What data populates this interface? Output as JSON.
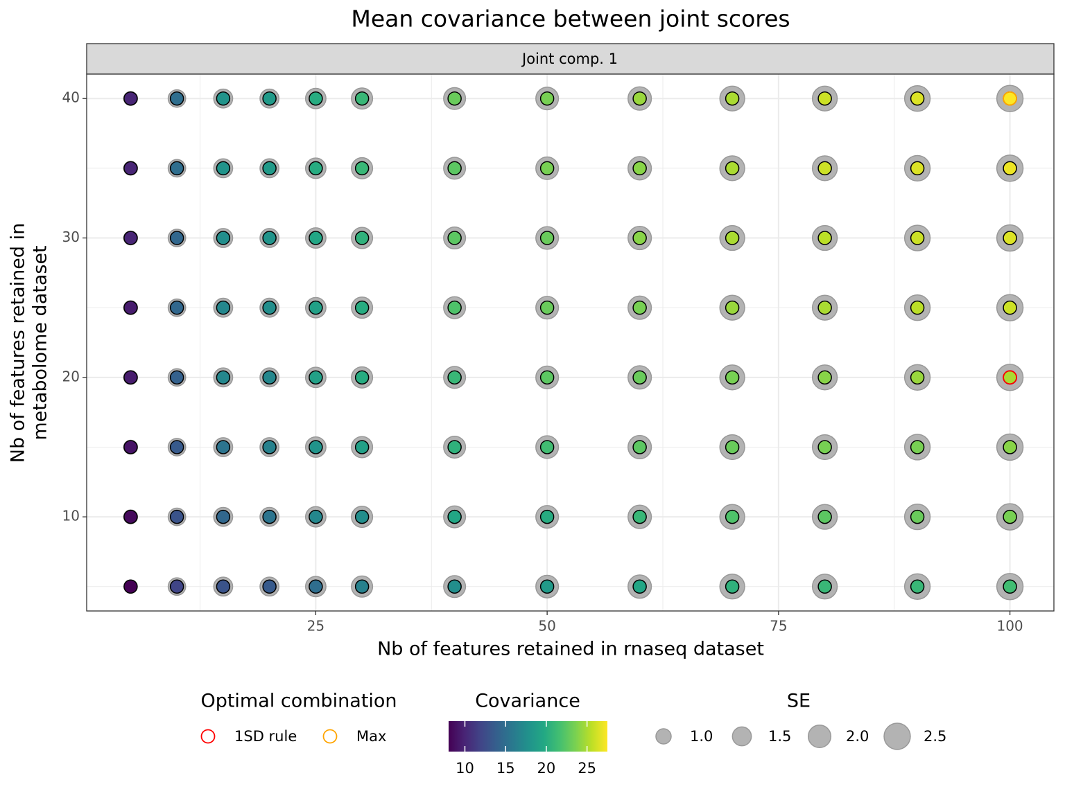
{
  "chart_data": {
    "type": "scatter",
    "title": "Mean covariance between joint scores",
    "strip": "Joint comp. 1",
    "xlabel": "Nb of features retained in rnaseq dataset",
    "ylabel": [
      "Nb of features retained in",
      "metabolome dataset"
    ],
    "xlim": [
      0.25,
      104.75
    ],
    "ylim": [
      3.25,
      41.75
    ],
    "xticks": [
      25,
      50,
      75,
      100
    ],
    "yticks": [
      10,
      20,
      30,
      40
    ],
    "x_minor_grid": [
      12.5,
      37.5,
      62.5,
      87.5
    ],
    "y_minor_grid": [
      5,
      15,
      25,
      35
    ],
    "grid": true,
    "x": [
      5,
      10,
      15,
      20,
      25,
      30,
      40,
      50,
      60,
      70,
      80,
      90,
      100,
      5,
      10,
      15,
      20,
      25,
      30,
      40,
      50,
      60,
      70,
      80,
      90,
      100,
      5,
      10,
      15,
      20,
      25,
      30,
      40,
      50,
      60,
      70,
      80,
      90,
      100,
      5,
      10,
      15,
      20,
      25,
      30,
      40,
      50,
      60,
      70,
      80,
      90,
      100,
      5,
      10,
      15,
      20,
      25,
      30,
      40,
      50,
      60,
      70,
      80,
      90,
      100,
      5,
      10,
      15,
      20,
      25,
      30,
      40,
      50,
      60,
      70,
      80,
      90,
      100,
      5,
      10,
      15,
      20,
      25,
      30,
      40,
      50,
      60,
      70,
      80,
      90,
      100,
      5,
      10,
      15,
      20,
      25,
      30,
      40,
      50,
      60,
      70,
      80,
      90,
      100
    ],
    "y": [
      40,
      40,
      40,
      40,
      40,
      40,
      40,
      40,
      40,
      40,
      40,
      40,
      40,
      35,
      35,
      35,
      35,
      35,
      35,
      35,
      35,
      35,
      35,
      35,
      35,
      35,
      30,
      30,
      30,
      30,
      30,
      30,
      30,
      30,
      30,
      30,
      30,
      30,
      30,
      25,
      25,
      25,
      25,
      25,
      25,
      25,
      25,
      25,
      25,
      25,
      25,
      25,
      20,
      20,
      20,
      20,
      20,
      20,
      20,
      20,
      20,
      20,
      20,
      20,
      20,
      15,
      15,
      15,
      15,
      15,
      15,
      15,
      15,
      15,
      15,
      15,
      15,
      15,
      10,
      10,
      10,
      10,
      10,
      10,
      10,
      10,
      10,
      10,
      10,
      10,
      10,
      5,
      5,
      5,
      5,
      5,
      5,
      5,
      5,
      5,
      5,
      5,
      5,
      5
    ],
    "covariance": [
      10,
      15,
      18,
      18.5,
      20,
      21,
      23,
      23.5,
      24.5,
      25,
      26,
      26.5,
      27.5,
      10,
      15,
      18,
      18.5,
      20,
      21,
      22.5,
      23.5,
      24,
      25,
      26,
      26.5,
      27,
      10,
      14.5,
      17.5,
      18,
      19.5,
      20.5,
      22.5,
      23,
      24,
      25,
      25.5,
      26,
      26.5,
      9.5,
      14.5,
      17,
      17.5,
      19,
      20,
      22,
      23,
      23.5,
      24.5,
      25,
      25.5,
      26,
      9.5,
      14,
      17,
      17,
      19,
      20,
      21,
      22.5,
      23,
      23.5,
      24,
      24.5,
      25,
      9,
      13.5,
      15.5,
      16.5,
      18,
      19,
      20.5,
      21.5,
      22.5,
      23,
      23.5,
      23.5,
      24,
      8.5,
      13,
      14.5,
      15.5,
      17,
      17.5,
      19.5,
      20,
      21,
      22,
      22.5,
      23,
      23.5,
      8,
      12,
      13,
      13.5,
      15,
      16.5,
      17.5,
      18.5,
      19.5,
      20.5,
      21,
      21,
      21.5
    ],
    "se": [
      0.8,
      1.3,
      1.5,
      1.5,
      1.7,
      1.8,
      1.9,
      2.0,
      2.1,
      2.3,
      2.3,
      2.4,
      2.5,
      0.8,
      1.3,
      1.5,
      1.5,
      1.7,
      1.8,
      1.9,
      2.0,
      2.1,
      2.3,
      2.3,
      2.4,
      2.5,
      0.8,
      1.3,
      1.5,
      1.5,
      1.7,
      1.8,
      1.9,
      2.0,
      2.1,
      2.3,
      2.3,
      2.4,
      2.5,
      0.8,
      1.3,
      1.5,
      1.5,
      1.7,
      1.8,
      1.9,
      2.0,
      2.1,
      2.3,
      2.3,
      2.4,
      2.5,
      0.8,
      1.3,
      1.5,
      1.5,
      1.7,
      1.8,
      1.9,
      2.0,
      2.1,
      2.3,
      2.3,
      2.4,
      2.5,
      0.8,
      1.3,
      1.5,
      1.5,
      1.7,
      1.8,
      1.9,
      2.0,
      2.1,
      2.3,
      2.3,
      2.4,
      2.5,
      0.8,
      1.3,
      1.5,
      1.5,
      1.7,
      1.8,
      1.9,
      2.0,
      2.1,
      2.3,
      2.3,
      2.4,
      2.5,
      0.7,
      1.3,
      1.5,
      1.5,
      1.7,
      1.8,
      1.9,
      2.0,
      2.1,
      2.3,
      2.3,
      2.4,
      2.5
    ],
    "colormap": "viridis",
    "clim": [
      8,
      27.5
    ],
    "optimal": {
      "title": "Optimal combination",
      "items": [
        {
          "name": "1SD rule",
          "color": "#ff0000",
          "x": 100,
          "y": 20
        },
        {
          "name": "Max",
          "color": "#ffa500",
          "x": 100,
          "y": 40
        }
      ]
    },
    "colorbar": {
      "title": "Covariance",
      "ticks": [
        10,
        15,
        20,
        25
      ]
    },
    "se_legend": {
      "title": "SE",
      "breaks": [
        {
          "value": 1,
          "label": "1.0"
        },
        {
          "value": 1.5,
          "label": "1.5"
        },
        {
          "value": 2,
          "label": "2.0"
        },
        {
          "value": 2.5,
          "label": "2.5"
        }
      ]
    }
  }
}
